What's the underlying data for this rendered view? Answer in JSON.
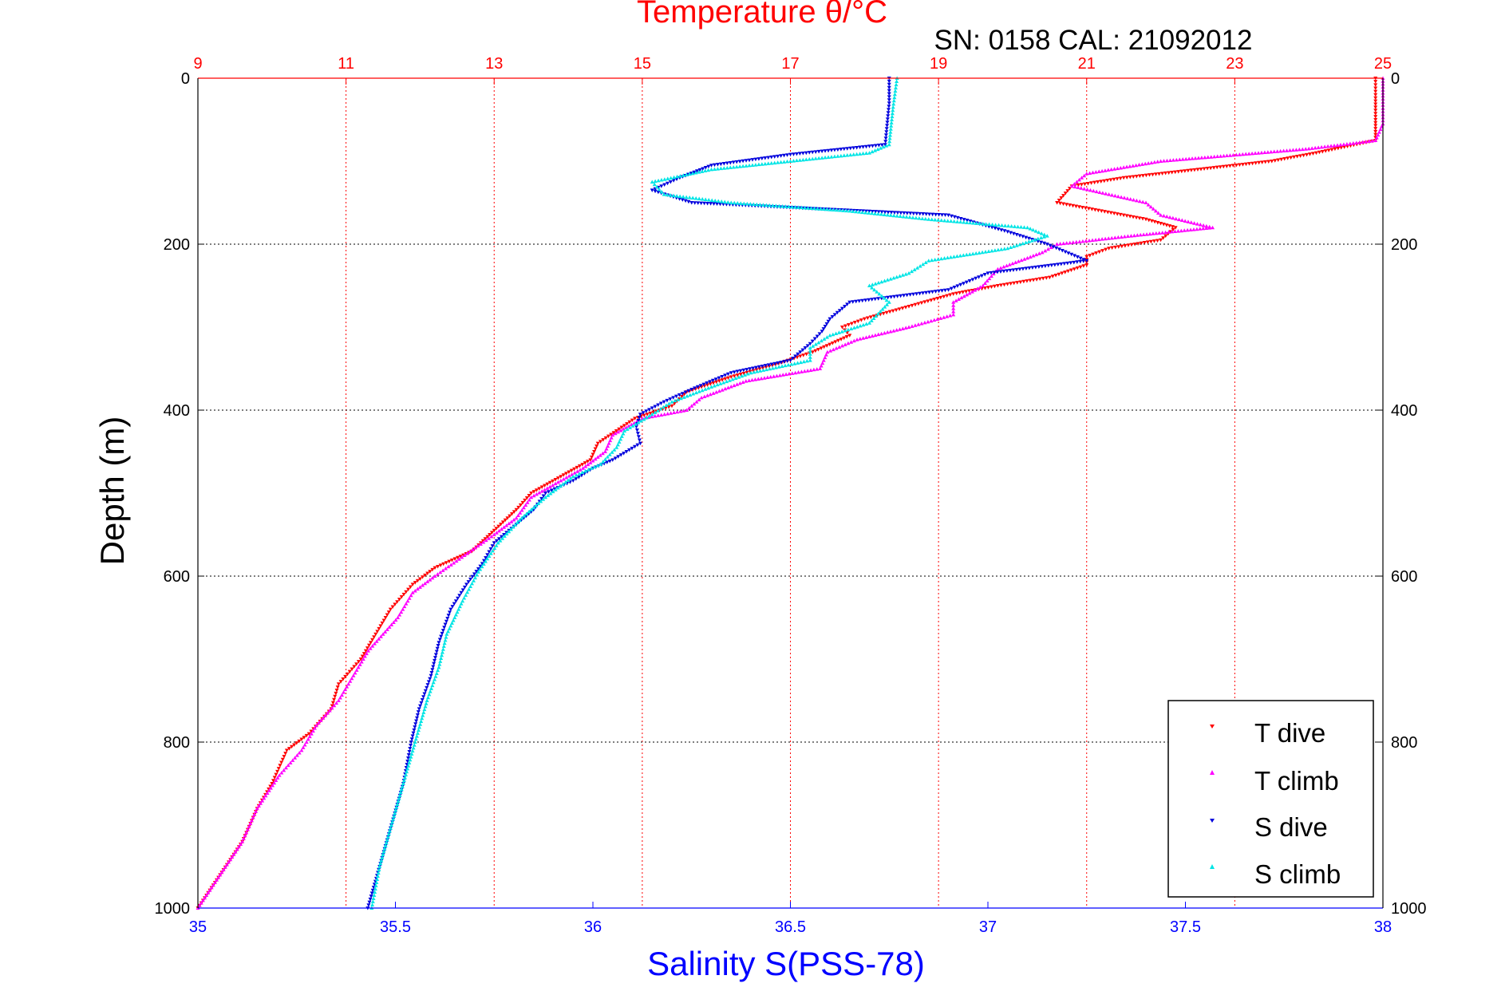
{
  "chart_data": {
    "type": "scatter",
    "title": "Temperature θ/°C",
    "subtitle": "SN: 0158  CAL: 21092012",
    "ylabel": "Depth (m)",
    "xlabel_bottom": "Salinity S(PSS-78)",
    "xlabel_top": "Temperature θ/°C",
    "y_ticks": [
      "0",
      "200",
      "400",
      "600",
      "800",
      "1000"
    ],
    "y_values": [
      0,
      200,
      400,
      600,
      800,
      1000
    ],
    "ylim": [
      0,
      1000
    ],
    "y_reversed": true,
    "temp_ticks": [
      "9",
      "11",
      "13",
      "15",
      "17",
      "19",
      "21",
      "23",
      "25"
    ],
    "temp_values": [
      9,
      11,
      13,
      15,
      17,
      19,
      21,
      23,
      25
    ],
    "temp_lim": [
      9,
      25
    ],
    "sal_ticks": [
      "35",
      "35.5",
      "36",
      "36.5",
      "37",
      "37.5",
      "38"
    ],
    "sal_values": [
      35,
      35.5,
      36,
      36.5,
      37,
      37.5,
      38
    ],
    "sal_lim": [
      35,
      38
    ],
    "grid": true,
    "legend_position": "bottom-right",
    "colors": {
      "temperature_axis": "#ff0000",
      "salinity_axis": "#0000ff",
      "t_dive": "#ff0000",
      "t_climb": "#ff00ff",
      "s_dive": "#0000dd",
      "s_climb": "#00e5e5"
    },
    "series": [
      {
        "name": "T dive",
        "axis": "temperature",
        "marker": "triangle-down",
        "points": [
          [
            24.9,
            0
          ],
          [
            24.9,
            20
          ],
          [
            24.9,
            50
          ],
          [
            24.9,
            75
          ],
          [
            24.1,
            90
          ],
          [
            23.5,
            100
          ],
          [
            22.5,
            110
          ],
          [
            21.5,
            120
          ],
          [
            20.8,
            130
          ],
          [
            20.6,
            150
          ],
          [
            21.2,
            160
          ],
          [
            21.8,
            170
          ],
          [
            22.2,
            180
          ],
          [
            22.0,
            195
          ],
          [
            21.3,
            205
          ],
          [
            21.0,
            215
          ],
          [
            21.0,
            225
          ],
          [
            20.5,
            240
          ],
          [
            19.8,
            250
          ],
          [
            19.2,
            260
          ],
          [
            18.6,
            275
          ],
          [
            18.0,
            290
          ],
          [
            17.7,
            300
          ],
          [
            17.8,
            310
          ],
          [
            17.3,
            330
          ],
          [
            16.8,
            345
          ],
          [
            16.2,
            360
          ],
          [
            15.6,
            378
          ],
          [
            15.4,
            395
          ],
          [
            14.9,
            410
          ],
          [
            14.4,
            440
          ],
          [
            14.3,
            460
          ],
          [
            13.9,
            480
          ],
          [
            13.5,
            500
          ],
          [
            13.3,
            520
          ],
          [
            13.0,
            545
          ],
          [
            12.7,
            570
          ],
          [
            12.2,
            590
          ],
          [
            11.9,
            610
          ],
          [
            11.6,
            640
          ],
          [
            11.4,
            670
          ],
          [
            11.2,
            700
          ],
          [
            10.9,
            730
          ],
          [
            10.8,
            760
          ],
          [
            10.5,
            790
          ],
          [
            10.2,
            810
          ],
          [
            10.0,
            850
          ],
          [
            9.8,
            880
          ],
          [
            9.6,
            920
          ],
          [
            9.3,
            960
          ],
          [
            9.0,
            1000
          ]
        ]
      },
      {
        "name": "T climb",
        "axis": "temperature",
        "marker": "triangle-up",
        "points": [
          [
            25.0,
            0
          ],
          [
            25.0,
            25
          ],
          [
            25.0,
            55
          ],
          [
            24.9,
            75
          ],
          [
            24.0,
            85
          ],
          [
            22.0,
            100
          ],
          [
            21.0,
            115
          ],
          [
            20.8,
            130
          ],
          [
            21.8,
            150
          ],
          [
            22.0,
            165
          ],
          [
            22.7,
            180
          ],
          [
            21.6,
            190
          ],
          [
            20.6,
            200
          ],
          [
            20.4,
            210
          ],
          [
            19.8,
            230
          ],
          [
            19.6,
            250
          ],
          [
            19.2,
            270
          ],
          [
            19.2,
            285
          ],
          [
            18.6,
            300
          ],
          [
            17.9,
            315
          ],
          [
            17.5,
            330
          ],
          [
            17.4,
            350
          ],
          [
            16.4,
            365
          ],
          [
            15.8,
            385
          ],
          [
            15.6,
            400
          ],
          [
            15.0,
            410
          ],
          [
            14.6,
            430
          ],
          [
            14.5,
            450
          ],
          [
            14.2,
            470
          ],
          [
            13.9,
            485
          ],
          [
            13.5,
            505
          ],
          [
            13.3,
            530
          ],
          [
            13.0,
            550
          ],
          [
            12.6,
            575
          ],
          [
            12.2,
            600
          ],
          [
            11.9,
            620
          ],
          [
            11.7,
            650
          ],
          [
            11.3,
            690
          ],
          [
            11.1,
            720
          ],
          [
            10.9,
            750
          ],
          [
            10.6,
            780
          ],
          [
            10.4,
            810
          ],
          [
            10.1,
            840
          ],
          [
            9.8,
            880
          ],
          [
            9.6,
            920
          ],
          [
            9.3,
            960
          ],
          [
            9.0,
            1000
          ]
        ]
      },
      {
        "name": "S dive",
        "axis": "salinity",
        "marker": "triangle-down",
        "points": [
          [
            36.75,
            0
          ],
          [
            36.75,
            30
          ],
          [
            36.74,
            80
          ],
          [
            36.5,
            92
          ],
          [
            36.3,
            105
          ],
          [
            36.22,
            120
          ],
          [
            36.15,
            135
          ],
          [
            36.25,
            150
          ],
          [
            36.9,
            165
          ],
          [
            37.05,
            185
          ],
          [
            37.15,
            200
          ],
          [
            37.25,
            220
          ],
          [
            37.0,
            235
          ],
          [
            36.9,
            255
          ],
          [
            36.65,
            270
          ],
          [
            36.6,
            290
          ],
          [
            36.58,
            305
          ],
          [
            36.55,
            320
          ],
          [
            36.5,
            340
          ],
          [
            36.35,
            355
          ],
          [
            36.25,
            375
          ],
          [
            36.18,
            390
          ],
          [
            36.12,
            405
          ],
          [
            36.11,
            420
          ],
          [
            36.12,
            440
          ],
          [
            36.05,
            460
          ],
          [
            36.0,
            470
          ],
          [
            35.95,
            485
          ],
          [
            35.88,
            500
          ],
          [
            35.85,
            520
          ],
          [
            35.8,
            540
          ],
          [
            35.75,
            560
          ],
          [
            35.72,
            585
          ],
          [
            35.68,
            610
          ],
          [
            35.64,
            640
          ],
          [
            35.61,
            680
          ],
          [
            35.59,
            720
          ],
          [
            35.56,
            760
          ],
          [
            35.54,
            800
          ],
          [
            35.52,
            850
          ],
          [
            35.49,
            900
          ],
          [
            35.46,
            950
          ],
          [
            35.43,
            1000
          ]
        ]
      },
      {
        "name": "S climb",
        "axis": "salinity",
        "marker": "triangle-up",
        "points": [
          [
            36.77,
            0
          ],
          [
            36.76,
            35
          ],
          [
            36.75,
            80
          ],
          [
            36.7,
            90
          ],
          [
            36.5,
            100
          ],
          [
            36.3,
            110
          ],
          [
            36.15,
            125
          ],
          [
            36.18,
            140
          ],
          [
            36.35,
            150
          ],
          [
            36.65,
            160
          ],
          [
            36.85,
            170
          ],
          [
            37.1,
            180
          ],
          [
            37.15,
            190
          ],
          [
            37.05,
            205
          ],
          [
            36.85,
            220
          ],
          [
            36.8,
            235
          ],
          [
            36.7,
            250
          ],
          [
            36.75,
            270
          ],
          [
            36.7,
            295
          ],
          [
            36.6,
            310
          ],
          [
            36.55,
            325
          ],
          [
            36.55,
            340
          ],
          [
            36.4,
            355
          ],
          [
            36.3,
            372
          ],
          [
            36.2,
            390
          ],
          [
            36.15,
            405
          ],
          [
            36.08,
            425
          ],
          [
            36.06,
            445
          ],
          [
            36.02,
            465
          ],
          [
            35.95,
            480
          ],
          [
            35.88,
            505
          ],
          [
            35.82,
            530
          ],
          [
            35.76,
            560
          ],
          [
            35.71,
            595
          ],
          [
            35.67,
            630
          ],
          [
            35.63,
            670
          ],
          [
            35.61,
            710
          ],
          [
            35.58,
            750
          ],
          [
            35.55,
            800
          ],
          [
            35.52,
            850
          ],
          [
            35.49,
            900
          ],
          [
            35.46,
            950
          ],
          [
            35.44,
            1000
          ]
        ]
      }
    ]
  }
}
